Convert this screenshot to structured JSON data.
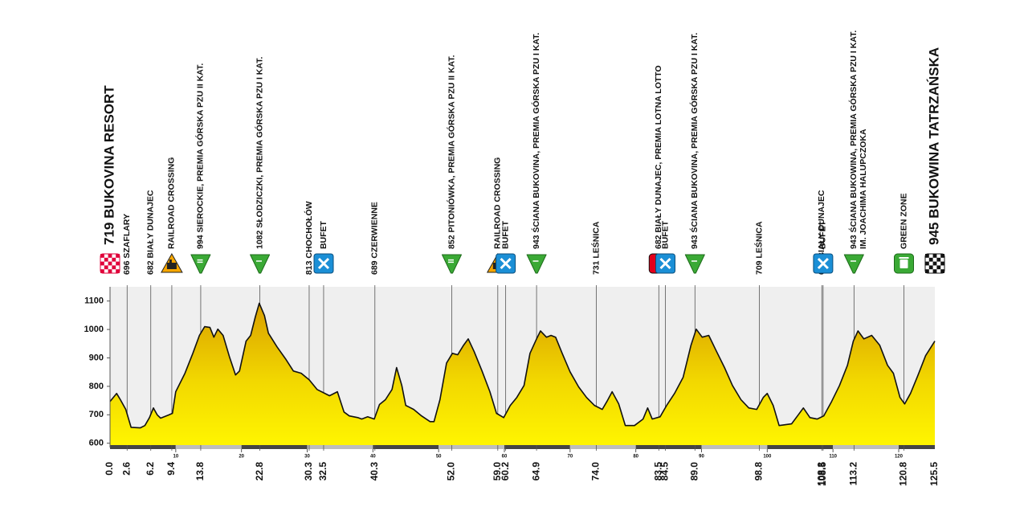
{
  "chart_data": {
    "type": "area",
    "color": "#f5e400",
    "xlim": [
      0,
      125.5
    ],
    "ylim": [
      585,
      1150
    ],
    "yticks": [
      600,
      700,
      800,
      900,
      1000,
      1100
    ],
    "xticks": [
      10,
      20,
      30,
      40,
      50,
      60,
      70,
      80,
      90,
      100,
      110,
      120
    ],
    "x": [
      0,
      1.0,
      1.6,
      2.4,
      3.2,
      4.6,
      5.3,
      6.0,
      6.6,
      7.2,
      7.7,
      8.9,
      9.5,
      10.0,
      11.4,
      12.6,
      13.6,
      14.4,
      15.2,
      15.8,
      16.4,
      17.2,
      18.2,
      19.1,
      19.7,
      20.7,
      21.4,
      22.1,
      22.7,
      23.5,
      24.1,
      25.4,
      26.7,
      27.9,
      29.1,
      30.3,
      31.5,
      33.4,
      34.6,
      35.6,
      36.4,
      37.7,
      38.3,
      39.2,
      40.2,
      41.0,
      41.9,
      42.9,
      43.6,
      44.4,
      45.0,
      46.2,
      47.4,
      48.7,
      49.3,
      50.2,
      51.2,
      52.1,
      52.9,
      53.8,
      54.5,
      55.4,
      56.6,
      57.8,
      58.8,
      59.9,
      60.9,
      61.9,
      63.0,
      63.9,
      64.9,
      65.5,
      66.4,
      67.1,
      67.8,
      68.8,
      70.0,
      71.3,
      72.5,
      73.7,
      74.9,
      75.6,
      76.4,
      77.4,
      78.4,
      79.8,
      81.1,
      81.8,
      82.5,
      83.7,
      84.7,
      85.9,
      87.2,
      88.4,
      89.2,
      90.1,
      91.1,
      92.3,
      93.5,
      94.7,
      96.0,
      97.2,
      98.4,
      99.4,
      100.0,
      100.9,
      101.8,
      103.7,
      104.6,
      105.5,
      106.5,
      107.6,
      108.6,
      109.8,
      111.0,
      112.2,
      113.1,
      113.8,
      114.7,
      115.9,
      117.1,
      118.3,
      119.2,
      120.2,
      120.9,
      121.8,
      122.9,
      124.1,
      125.5
    ],
    "values": [
      747,
      775,
      752,
      719,
      656,
      654,
      662,
      690,
      724,
      699,
      688,
      699,
      705,
      781,
      846,
      916,
      979,
      1010,
      1007,
      973,
      1001,
      979,
      902,
      840,
      854,
      959,
      979,
      1044,
      1092,
      1049,
      987,
      939,
      897,
      854,
      846,
      823,
      789,
      767,
      781,
      710,
      696,
      690,
      685,
      693,
      685,
      736,
      753,
      789,
      866,
      803,
      733,
      719,
      696,
      676,
      676,
      753,
      882,
      916,
      911,
      945,
      967,
      922,
      854,
      781,
      705,
      690,
      733,
      761,
      803,
      916,
      967,
      995,
      973,
      979,
      973,
      916,
      851,
      798,
      761,
      733,
      719,
      747,
      781,
      738,
      662,
      662,
      685,
      724,
      685,
      693,
      733,
      775,
      832,
      945,
      1001,
      973,
      979,
      922,
      866,
      803,
      753,
      724,
      719,
      761,
      775,
      733,
      662,
      668,
      696,
      724,
      690,
      685,
      696,
      747,
      803,
      874,
      959,
      995,
      967,
      979,
      945,
      874,
      846,
      761,
      738,
      775,
      837,
      908,
      959
    ],
    "waypoints": [
      {
        "km": {
          "value": 0,
          "label": "0.0"
        },
        "name": [
          "719 BUKOVINA RESORT"
        ],
        "icon": "start"
      },
      {
        "km": 2.6,
        "name": [
          "696 SZAFLARY"
        ]
      },
      {
        "km": 6.2,
        "name": [
          "682 BIAŁY DUNAJEC"
        ]
      },
      {
        "km": 9.4,
        "name": [
          "RAILROAD CROSSING"
        ],
        "icon": "rail"
      },
      {
        "km": 13.8,
        "name": [
          "994 SIEROCKIE, PREMIA GÓRSKA PZU II KAT."
        ],
        "icon": "kom",
        "icon_text": "II"
      },
      {
        "km": 22.8,
        "name": [
          "1082 SŁODZICZKI, PREMIA GÓRSKA PZU I KAT."
        ],
        "icon": "kom",
        "icon_text": "I"
      },
      {
        "km": 30.3,
        "name": [
          "813 CHOCHOŁÓW"
        ]
      },
      {
        "km": 32.5,
        "name": [
          "BUFET"
        ],
        "icon": "feed"
      },
      {
        "km": 40.3,
        "name": [
          "689 CZERWIENNE"
        ]
      },
      {
        "km": {
          "value": 52,
          "label": "52.0"
        },
        "name": [
          "852 PITONIÓWKA, PREMIA GÓRSKA PZU II KAT."
        ],
        "icon": "kom",
        "icon_text": "II"
      },
      {
        "km": {
          "value": 59,
          "label": "59.0"
        },
        "name": [
          "RAILROAD CROSSING"
        ],
        "icon": "rail"
      },
      {
        "km": 60.2,
        "name": [
          "BUFET"
        ],
        "icon": "feed"
      },
      {
        "km": 64.9,
        "name": [
          "943 ŚCIANA BUKOVINA, PREMIA GÓRSKA PZU I KAT."
        ],
        "icon": "kom",
        "icon_text": "I"
      },
      {
        "km": {
          "value": 74,
          "label": "74.0"
        },
        "name": [
          "731 LEŚNICA"
        ]
      },
      {
        "km": 83.5,
        "name": [
          "682 BIAŁY DUNAJEC, PREMIA LOTNA LOTTO"
        ],
        "icon": "sprint"
      },
      {
        "km": 84.5,
        "name": [
          "BUFET"
        ],
        "icon": "feed"
      },
      {
        "km": {
          "value": 89,
          "label": "89.0"
        },
        "name": [
          "943 ŚCIANA BUKOVINA, PREMIA GÓRSKA PZU I KAT."
        ],
        "icon": "kom",
        "icon_text": "I"
      },
      {
        "km": 98.8,
        "name": [
          "709 LEŚNICA"
        ]
      },
      {
        "km": 108.3,
        "name": [
          "683 BIAŁY DUNAJEC"
        ]
      },
      {
        "km": 108.5,
        "name": [
          "BUFET"
        ],
        "icon": "feed"
      },
      {
        "km": 113.2,
        "name": [
          "943 ŚCIANA BUKOWINA, PREMIA GÓRSKA PZU I KAT.",
          "IM. JOACHIMA HALUPCZOKA"
        ],
        "icon": "kom",
        "icon_text": "I"
      },
      {
        "km": 120.8,
        "name": [
          "GREEN ZONE"
        ],
        "icon": "green"
      },
      {
        "km": 125.5,
        "name": [
          "945 BUKOWINA TATRZAŃSKA"
        ],
        "icon": "finish"
      }
    ]
  }
}
